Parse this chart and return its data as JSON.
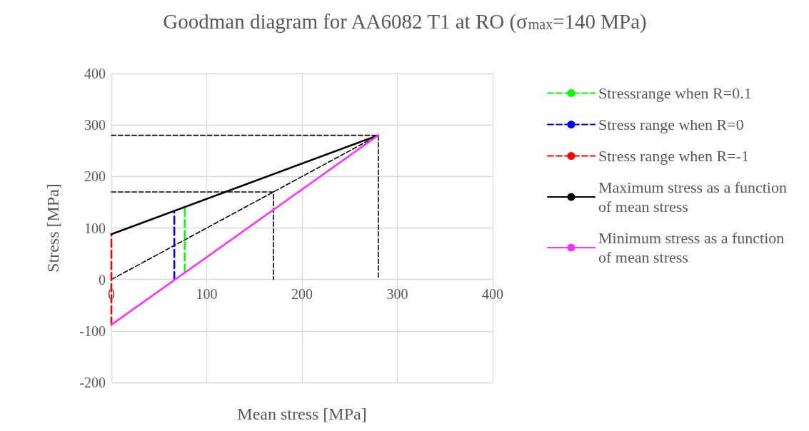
{
  "chart_data": {
    "type": "line",
    "title": "Goodman diagram for AA6082 T1 at RO (σ$_{max}$=140 MPa)",
    "xlabel": "Mean stress [MPa]",
    "ylabel": "Stress [MPa]",
    "xlim": [
      0,
      400
    ],
    "xticks": [
      0,
      100,
      200,
      300,
      400
    ],
    "ylim": [
      -200,
      400
    ],
    "yticks": [
      -200,
      -100,
      0,
      100,
      200,
      300,
      400
    ],
    "grid": true,
    "legend": "right",
    "marker": "none",
    "series": [
      {
        "name": "Stressrange when R=0.1",
        "color": "#00ff00",
        "line_style": "dashed",
        "x": [
          77,
          77
        ],
        "values": [
          15,
          140
        ]
      },
      {
        "name": "Stress range when R=0",
        "color": "#0000ff",
        "line_style": "dashed",
        "x": [
          66,
          66
        ],
        "values": [
          0,
          132
        ]
      },
      {
        "name": "Stress range when R=-1",
        "color": "#ff0000",
        "line_style": "dashed",
        "x": [
          0,
          0
        ],
        "values": [
          -88,
          88
        ]
      },
      {
        "name": "Maximum stress as a function of mean stress",
        "color": "#000000",
        "line_style": "solid",
        "x": [
          0,
          280
        ],
        "values": [
          88,
          280
        ]
      },
      {
        "name": "Minimum stress as a function of mean stress",
        "color": "#ff33ff",
        "line_style": "solid",
        "x": [
          0,
          280
        ],
        "values": [
          -88,
          280
        ]
      },
      {
        "color": "#000000",
        "line_style": "dashed",
        "x": [
          0,
          280
        ],
        "values": [
          0,
          280
        ]
      },
      {
        "color": "#000000",
        "line_style": "dashed",
        "x": [
          0,
          280,
          280
        ],
        "values": [
          280,
          280,
          0
        ]
      },
      {
        "color": "#000000",
        "line_style": "dashed",
        "x": [
          0,
          170,
          170
        ],
        "values": [
          170,
          170,
          0
        ]
      }
    ]
  }
}
